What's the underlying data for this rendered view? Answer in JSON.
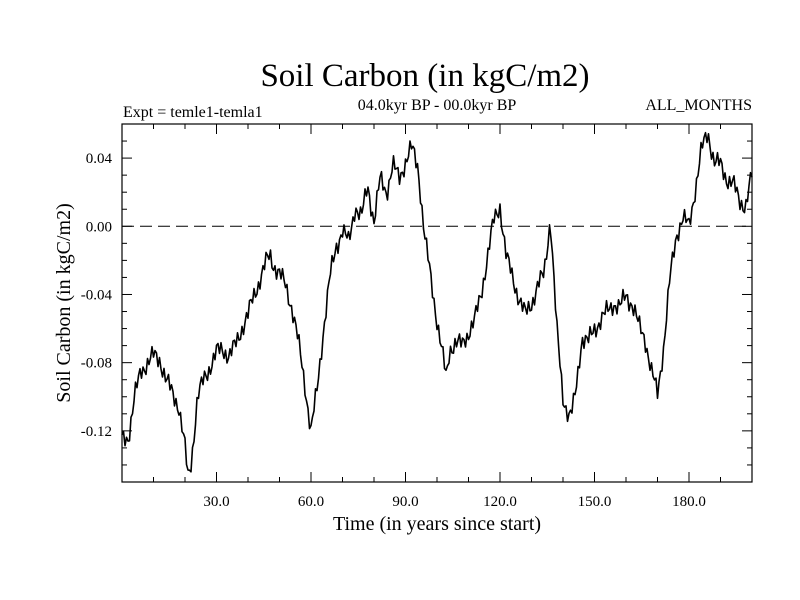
{
  "chart_data": {
    "type": "line",
    "title": "Soil Carbon (in kgC/m2)",
    "subtitle_left": "Expt = temle1-temla1",
    "subtitle_center": "04.0kyr BP - 00.0kyr BP",
    "subtitle_right": "ALL_MONTHS",
    "xlabel": "Time (in years since start)",
    "ylabel": "Soil Carbon (in kgC/m2)",
    "xlim": [
      0,
      200
    ],
    "ylim": [
      -0.15,
      0.06
    ],
    "xticks": [
      30,
      60,
      90,
      120,
      150,
      180
    ],
    "xtick_labels": [
      "30.0",
      "60.0",
      "90.0",
      "120.0",
      "150.0",
      "180.0"
    ],
    "yticks": [
      0.04,
      0.0,
      -0.04,
      -0.08,
      -0.12
    ],
    "ytick_labels": [
      "0.04",
      "0.00",
      "-0.04",
      "-0.08",
      "-0.12"
    ],
    "reference_line": {
      "y": 0.0,
      "style": "dashed"
    },
    "series": [
      {
        "name": "Soil Carbon",
        "x": [
          0,
          2,
          4,
          6,
          8,
          10,
          12,
          14,
          16,
          18,
          20,
          21,
          22,
          24,
          26,
          28,
          30,
          32,
          34,
          36,
          38,
          40,
          42,
          44,
          46,
          47,
          48,
          50,
          52,
          54,
          56,
          58,
          60,
          62,
          64,
          66,
          68,
          70,
          72,
          74,
          76,
          78,
          80,
          82,
          84,
          86,
          88,
          90,
          92,
          94,
          96,
          98,
          100,
          102,
          103,
          104,
          106,
          108,
          110,
          112,
          114,
          116,
          118,
          120,
          122,
          124,
          126,
          128,
          130,
          132,
          134,
          136,
          138,
          140,
          142,
          143,
          144,
          146,
          148,
          150,
          152,
          154,
          156,
          158,
          160,
          162,
          164,
          166,
          168,
          170,
          172,
          174,
          176,
          178,
          180,
          182,
          184,
          186,
          188,
          190,
          192,
          194,
          196,
          198,
          200
        ],
        "values": [
          -0.125,
          -0.124,
          -0.1,
          -0.085,
          -0.08,
          -0.076,
          -0.078,
          -0.09,
          -0.098,
          -0.105,
          -0.13,
          -0.148,
          -0.138,
          -0.1,
          -0.09,
          -0.082,
          -0.074,
          -0.072,
          -0.076,
          -0.07,
          -0.06,
          -0.052,
          -0.04,
          -0.03,
          -0.02,
          -0.017,
          -0.022,
          -0.028,
          -0.035,
          -0.048,
          -0.068,
          -0.092,
          -0.12,
          -0.095,
          -0.06,
          -0.03,
          -0.012,
          -0.002,
          -0.01,
          0.012,
          0.005,
          0.024,
          0.003,
          0.028,
          0.02,
          0.036,
          0.028,
          0.038,
          0.046,
          0.035,
          -0.005,
          -0.03,
          -0.055,
          -0.078,
          -0.09,
          -0.072,
          -0.068,
          -0.07,
          -0.062,
          -0.055,
          -0.04,
          -0.018,
          0.003,
          0.012,
          -0.018,
          -0.03,
          -0.042,
          -0.052,
          -0.045,
          -0.035,
          -0.028,
          0.005,
          -0.06,
          -0.1,
          -0.112,
          -0.108,
          -0.098,
          -0.065,
          -0.068,
          -0.06,
          -0.055,
          -0.05,
          -0.045,
          -0.048,
          -0.04,
          -0.046,
          -0.058,
          -0.065,
          -0.085,
          -0.098,
          -0.07,
          -0.03,
          -0.005,
          0.005,
          0.0,
          0.022,
          0.045,
          0.055,
          0.038,
          0.036,
          0.028,
          0.025,
          0.015,
          0.012,
          0.03
        ]
      }
    ]
  }
}
